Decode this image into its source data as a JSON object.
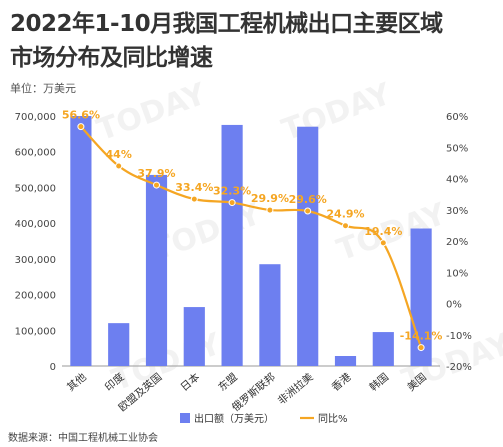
{
  "title_line1": "2022年1-10月我国工程机械出口主要区域",
  "title_line2": "市场分布及同比增速",
  "unit_label": "单位：万美元",
  "source": "数据来源：中国工程机械工业协会",
  "watermark": "TODAY",
  "colors": {
    "bar": "#6d7ff0",
    "line": "#f5a623",
    "label": "#f5a623",
    "axis": "#444444",
    "grid": "#e6e6e6"
  },
  "chart_data": {
    "type": "bar",
    "categories": [
      "其他",
      "印度",
      "欧盟及英国",
      "日本",
      "东盟",
      "俄罗斯联邦",
      "非洲拉美",
      "香港",
      "韩国",
      "美国"
    ],
    "series": [
      {
        "name": "出口额（万美元）",
        "type": "bar",
        "values": [
          700000,
          120000,
          535000,
          165000,
          675000,
          285000,
          670000,
          28000,
          95000,
          385000
        ]
      },
      {
        "name": "同比%",
        "type": "line",
        "values": [
          56.6,
          44,
          37.9,
          33.4,
          32.3,
          29.9,
          29.6,
          24.9,
          19.4,
          -14.1
        ]
      }
    ],
    "data_labels": [
      "56.6%",
      "44%",
      "37.9%",
      "33.4%",
      "32.3%",
      "29.9%",
      "29.6%",
      "24.9%",
      "19.4%",
      "-14.1%"
    ],
    "y_left": {
      "min": 0,
      "max": 700000,
      "ticks": [
        "0",
        "100,000",
        "200,000",
        "300,000",
        "400,000",
        "500,000",
        "600,000",
        "700,000"
      ]
    },
    "y_right": {
      "min": -20,
      "max": 60,
      "ticks": [
        "-20%",
        "-10%",
        "0%",
        "10%",
        "20%",
        "30%",
        "40%",
        "50%",
        "60%"
      ]
    },
    "legend_position": "bottom-right",
    "grid": false
  }
}
